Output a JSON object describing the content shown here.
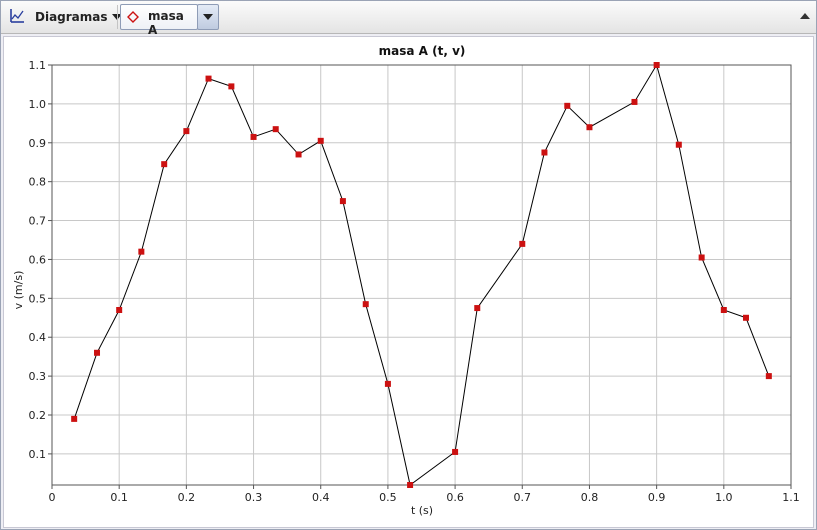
{
  "toolbar": {
    "menu_label": "Diagramas",
    "series_label": "masa A",
    "icons": {
      "chart": "chart-axes-icon",
      "series": "diamond-icon",
      "dropdown": "chevron-down-icon",
      "collapse": "collapse-up-icon"
    },
    "colors": {
      "series_marker": "#cc1111"
    }
  },
  "chart_data": {
    "type": "line",
    "title": "masa A (t, v)",
    "xlabel": "t (s)",
    "ylabel": "v (m/s)",
    "xlim": [
      0,
      1.1
    ],
    "ylim": [
      0.02,
      1.1
    ],
    "x_ticks": [
      "0",
      "0.1",
      "0.2",
      "0.3",
      "0.4",
      "0.5",
      "0.6",
      "0.7",
      "0.8",
      "0.9",
      "1.0",
      "1.1"
    ],
    "y_ticks": [
      "0.1",
      "0.2",
      "0.3",
      "0.4",
      "0.5",
      "0.6",
      "0.7",
      "0.8",
      "0.9",
      "1.0",
      "1.1"
    ],
    "grid": true,
    "line_color": "#000000",
    "marker_color": "#cc1111",
    "series": [
      {
        "x": [
          0.033,
          0.067,
          0.1,
          0.133,
          0.167,
          0.2,
          0.233,
          0.267,
          0.3,
          0.333,
          0.367,
          0.4,
          0.433,
          0.467,
          0.5,
          0.533,
          0.6,
          0.633,
          0.7,
          0.733,
          0.767,
          0.8,
          0.867,
          0.9,
          0.933,
          0.967,
          1.0,
          1.033,
          1.067
        ],
        "y": [
          0.19,
          0.36,
          0.47,
          0.62,
          0.845,
          0.93,
          1.065,
          1.045,
          0.915,
          0.935,
          0.87,
          0.905,
          0.75,
          0.485,
          0.28,
          0.02,
          0.105,
          0.475,
          0.64,
          0.875,
          0.995,
          0.94,
          1.005,
          1.1,
          0.895,
          0.605,
          0.47,
          0.45,
          0.3
        ]
      }
    ]
  }
}
